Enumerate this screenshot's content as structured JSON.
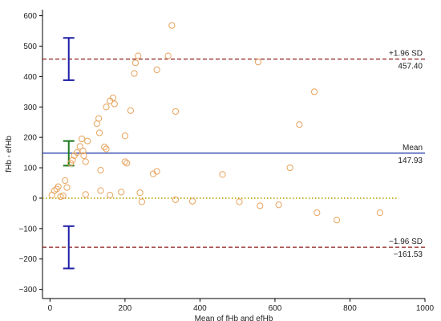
{
  "chart_data": {
    "type": "scatter",
    "title": "",
    "xlabel": "Mean of fHb and efHb",
    "ylabel": "fHb - efHb",
    "xlim": [
      -20,
      1000
    ],
    "ylim": [
      -330,
      620
    ],
    "x_ticks": [
      0,
      200,
      400,
      600,
      800,
      1000
    ],
    "y_ticks": [
      -300,
      -200,
      -100,
      0,
      100,
      200,
      300,
      400,
      500,
      600
    ],
    "grid": false,
    "marker_color": "#E8A35C",
    "reference_lines": {
      "upper_loa": {
        "label": "+1.96 SD",
        "value_text": "457.40",
        "value": 457.4,
        "color": "#8B1A1A",
        "style": "dashed"
      },
      "mean": {
        "label": "Mean",
        "value_text": "147.93",
        "value": 147.93,
        "color": "#1F3AA8",
        "style": "solid"
      },
      "lower_loa": {
        "label": "−1.96 SD",
        "value_text": "−161.53",
        "value": -161.53,
        "color": "#8B1A1A",
        "style": "dashed"
      },
      "zero": {
        "value": 0,
        "color": "#B8A000",
        "style": "dotted"
      }
    },
    "confidence_intervals": [
      {
        "name": "upper",
        "low": 388,
        "high": 527,
        "color": "#1F1FA8"
      },
      {
        "name": "mean",
        "low": 107,
        "high": 188,
        "color": "#1E7A1E"
      },
      {
        "name": "lower",
        "low": -231,
        "high": -92,
        "color": "#1F1FA8"
      }
    ],
    "points": [
      {
        "x": 5,
        "y": 10
      },
      {
        "x": 12,
        "y": 25
      },
      {
        "x": 18,
        "y": 30
      },
      {
        "x": 22,
        "y": 38
      },
      {
        "x": 28,
        "y": 5
      },
      {
        "x": 35,
        "y": 8
      },
      {
        "x": 40,
        "y": 58
      },
      {
        "x": 45,
        "y": 35
      },
      {
        "x": 55,
        "y": 115
      },
      {
        "x": 60,
        "y": 125
      },
      {
        "x": 65,
        "y": 140
      },
      {
        "x": 72,
        "y": 150
      },
      {
        "x": 80,
        "y": 170
      },
      {
        "x": 85,
        "y": 195
      },
      {
        "x": 88,
        "y": 155
      },
      {
        "x": 90,
        "y": 140
      },
      {
        "x": 95,
        "y": 120
      },
      {
        "x": 95,
        "y": 12
      },
      {
        "x": 100,
        "y": 188
      },
      {
        "x": 125,
        "y": 245
      },
      {
        "x": 130,
        "y": 262
      },
      {
        "x": 132,
        "y": 215
      },
      {
        "x": 135,
        "y": 92
      },
      {
        "x": 135,
        "y": 25
      },
      {
        "x": 145,
        "y": 168
      },
      {
        "x": 150,
        "y": 162
      },
      {
        "x": 150,
        "y": 300
      },
      {
        "x": 160,
        "y": 320
      },
      {
        "x": 160,
        "y": 10
      },
      {
        "x": 168,
        "y": 330
      },
      {
        "x": 172,
        "y": 310
      },
      {
        "x": 190,
        "y": 20
      },
      {
        "x": 200,
        "y": 205
      },
      {
        "x": 200,
        "y": 120
      },
      {
        "x": 205,
        "y": 115
      },
      {
        "x": 215,
        "y": 288
      },
      {
        "x": 225,
        "y": 410
      },
      {
        "x": 228,
        "y": 445
      },
      {
        "x": 235,
        "y": 468
      },
      {
        "x": 240,
        "y": 18
      },
      {
        "x": 245,
        "y": -12
      },
      {
        "x": 275,
        "y": 80
      },
      {
        "x": 285,
        "y": 88
      },
      {
        "x": 285,
        "y": 422
      },
      {
        "x": 315,
        "y": 468
      },
      {
        "x": 325,
        "y": 568
      },
      {
        "x": 335,
        "y": 285
      },
      {
        "x": 335,
        "y": -5
      },
      {
        "x": 380,
        "y": -10
      },
      {
        "x": 460,
        "y": 78
      },
      {
        "x": 505,
        "y": -12
      },
      {
        "x": 555,
        "y": 448
      },
      {
        "x": 560,
        "y": -25
      },
      {
        "x": 610,
        "y": -22
      },
      {
        "x": 640,
        "y": 100
      },
      {
        "x": 665,
        "y": 242
      },
      {
        "x": 705,
        "y": 350
      },
      {
        "x": 712,
        "y": -48
      },
      {
        "x": 765,
        "y": -72
      },
      {
        "x": 880,
        "y": -48
      }
    ]
  }
}
